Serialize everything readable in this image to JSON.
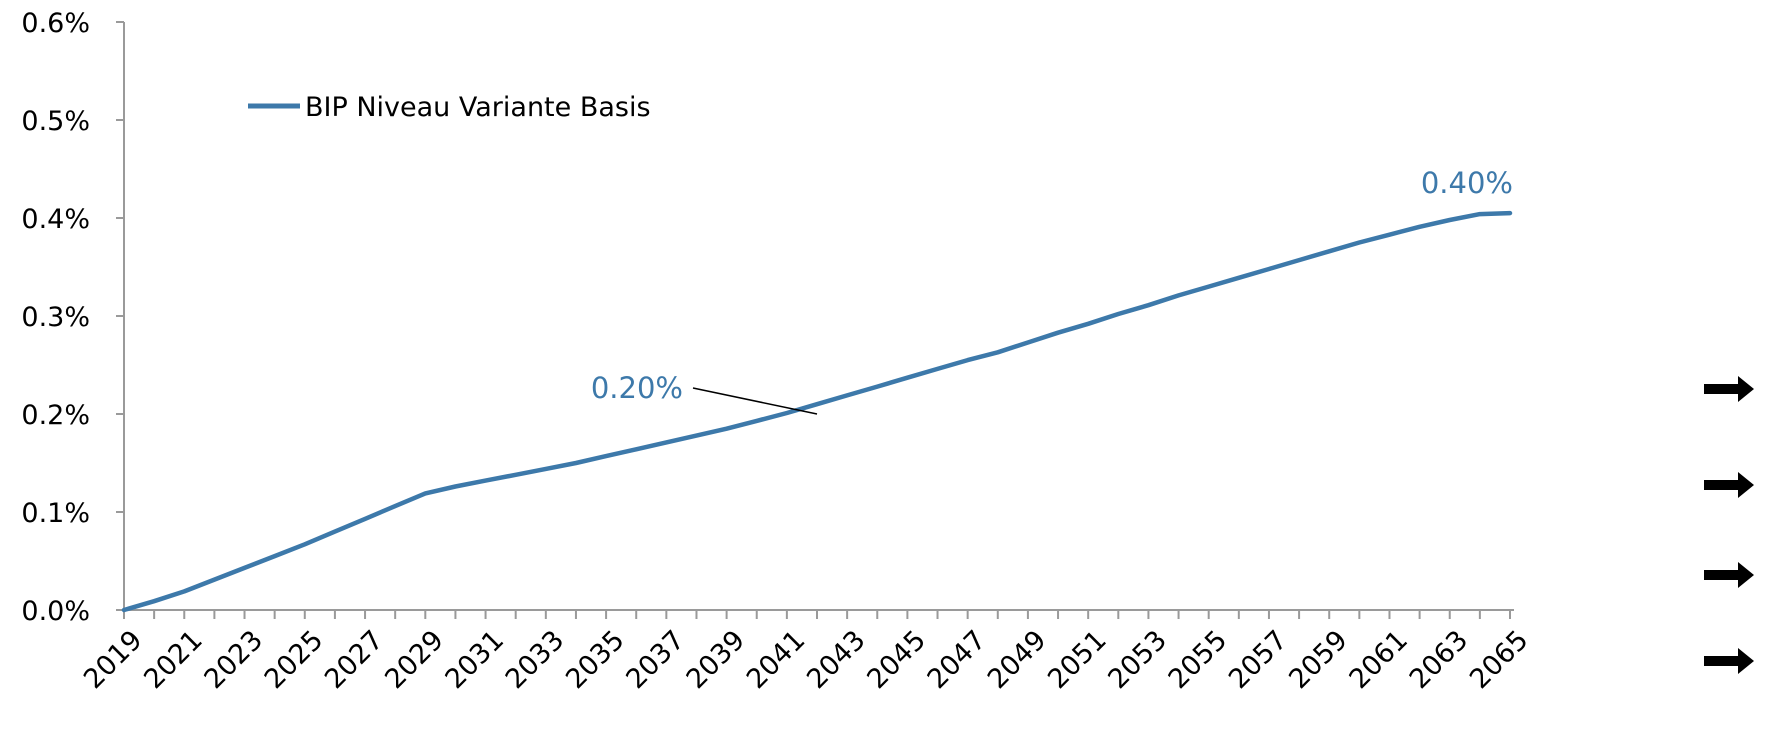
{
  "chart_data": {
    "type": "line",
    "title": "",
    "xlabel": "",
    "ylabel": "",
    "ylim": [
      0,
      0.6
    ],
    "yticks": [
      "0.0%",
      "0.1%",
      "0.2%",
      "0.3%",
      "0.4%",
      "0.5%",
      "0.6%"
    ],
    "x_tick_labels": [
      "2019",
      "2021",
      "2023",
      "2025",
      "2027",
      "2029",
      "2031",
      "2033",
      "2035",
      "2037",
      "2039",
      "2041",
      "2043",
      "2045",
      "2047",
      "2049",
      "2051",
      "2053",
      "2055",
      "2057",
      "2059",
      "2061",
      "2063",
      "2065"
    ],
    "grid": false,
    "legend_position": "top-left",
    "series": [
      {
        "name": "BIP Niveau Variante Basis",
        "color": "#3d79aa",
        "x": [
          2019,
          2020,
          2021,
          2022,
          2023,
          2024,
          2025,
          2026,
          2027,
          2028,
          2029,
          2030,
          2031,
          2032,
          2033,
          2034,
          2035,
          2036,
          2037,
          2038,
          2039,
          2040,
          2041,
          2042,
          2043,
          2044,
          2045,
          2046,
          2047,
          2048,
          2049,
          2050,
          2051,
          2052,
          2053,
          2054,
          2055,
          2056,
          2057,
          2058,
          2059,
          2060,
          2061,
          2062,
          2063,
          2064,
          2065
        ],
        "values": [
          0.0,
          0.009,
          0.019,
          0.031,
          0.043,
          0.055,
          0.067,
          0.08,
          0.093,
          0.106,
          0.119,
          0.126,
          0.132,
          0.138,
          0.144,
          0.15,
          0.157,
          0.164,
          0.171,
          0.178,
          0.185,
          0.193,
          0.201,
          0.21,
          0.219,
          0.228,
          0.237,
          0.246,
          0.255,
          0.263,
          0.273,
          0.283,
          0.292,
          0.302,
          0.311,
          0.321,
          0.33,
          0.339,
          0.348,
          0.357,
          0.366,
          0.375,
          0.383,
          0.391,
          0.398,
          0.404,
          0.405
        ]
      }
    ],
    "annotations": [
      {
        "text": "0.20%",
        "x": 2042,
        "y": 0.2,
        "color": "#3d79aa"
      },
      {
        "text": "0.40%",
        "x": 2065,
        "y": 0.405,
        "color": "#3d79aa"
      }
    ]
  },
  "arrow_markers": [
    {
      "name": "arrow-1",
      "icon": "right-arrow-icon"
    },
    {
      "name": "arrow-2",
      "icon": "right-arrow-icon"
    },
    {
      "name": "arrow-3",
      "icon": "right-arrow-icon"
    },
    {
      "name": "arrow-4",
      "icon": "right-arrow-icon"
    }
  ]
}
